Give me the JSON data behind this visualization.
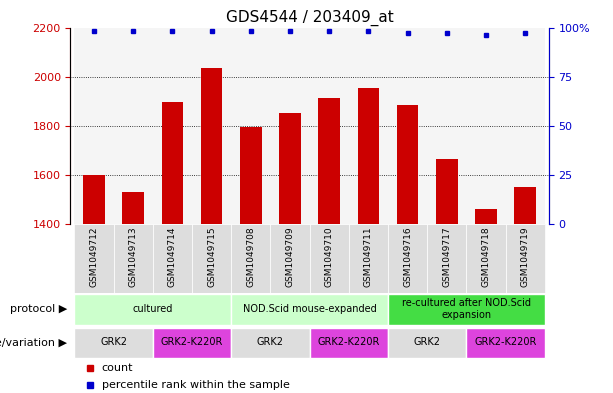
{
  "title": "GDS4544 / 203409_at",
  "samples": [
    "GSM1049712",
    "GSM1049713",
    "GSM1049714",
    "GSM1049715",
    "GSM1049708",
    "GSM1049709",
    "GSM1049710",
    "GSM1049711",
    "GSM1049716",
    "GSM1049717",
    "GSM1049718",
    "GSM1049719"
  ],
  "counts": [
    1600,
    1530,
    1895,
    2035,
    1795,
    1850,
    1915,
    1955,
    1885,
    1665,
    1460,
    1550
  ],
  "percentile_ranks": [
    98,
    98,
    98,
    98,
    98,
    98,
    98,
    98,
    97,
    97,
    96,
    97
  ],
  "ylim_left": [
    1400,
    2200
  ],
  "ylim_right": [
    0,
    100
  ],
  "yticks_left": [
    1400,
    1600,
    1800,
    2000,
    2200
  ],
  "yticks_right": [
    0,
    25,
    50,
    75,
    100
  ],
  "bar_color": "#CC0000",
  "dot_color": "#0000CC",
  "protocol_groups": [
    {
      "label": "cultured",
      "start": 0,
      "end": 3,
      "color": "#CCFFCC"
    },
    {
      "label": "NOD.Scid mouse-expanded",
      "start": 4,
      "end": 7,
      "color": "#CCFFCC"
    },
    {
      "label": "re-cultured after NOD.Scid\nexpansion",
      "start": 8,
      "end": 11,
      "color": "#44DD44"
    }
  ],
  "genotype_groups": [
    {
      "label": "GRK2",
      "start": 0,
      "end": 1,
      "color": "#DDDDDD"
    },
    {
      "label": "GRK2-K220R",
      "start": 2,
      "end": 3,
      "color": "#DD44DD"
    },
    {
      "label": "GRK2",
      "start": 4,
      "end": 5,
      "color": "#DDDDDD"
    },
    {
      "label": "GRK2-K220R",
      "start": 6,
      "end": 7,
      "color": "#DD44DD"
    },
    {
      "label": "GRK2",
      "start": 8,
      "end": 9,
      "color": "#DDDDDD"
    },
    {
      "label": "GRK2-K220R",
      "start": 10,
      "end": 11,
      "color": "#DD44DD"
    }
  ],
  "protocol_label": "protocol",
  "genotype_label": "genotype/variation",
  "legend_count_label": "count",
  "legend_pct_label": "percentile rank within the sample",
  "bg_color": "#FFFFFF",
  "tick_color_left": "#CC0000",
  "tick_color_right": "#0000CC",
  "title_fontsize": 11,
  "tick_fontsize": 8,
  "label_fontsize": 8,
  "annot_fontsize": 8,
  "bar_width": 0.55,
  "xlim": [
    -0.6,
    11.6
  ]
}
